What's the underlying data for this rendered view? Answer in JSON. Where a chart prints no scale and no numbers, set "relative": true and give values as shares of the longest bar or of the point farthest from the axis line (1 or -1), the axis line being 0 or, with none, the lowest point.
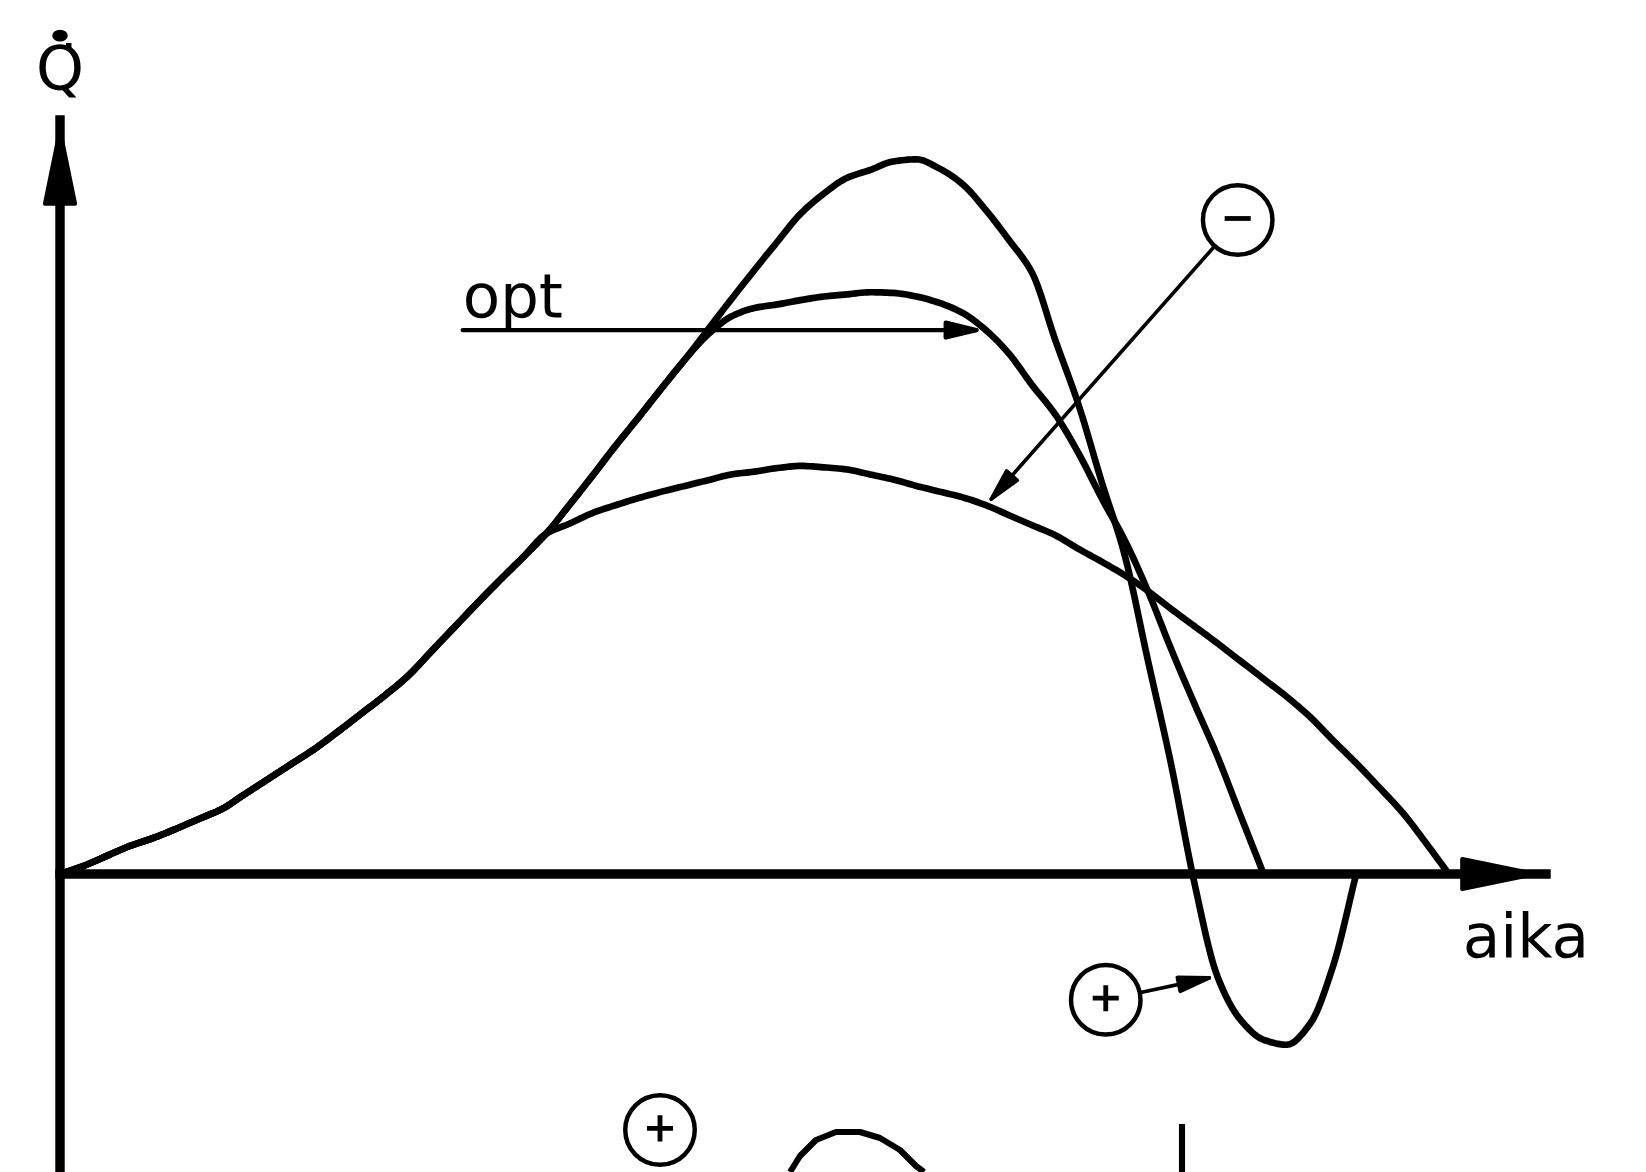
{
  "chart_data": {
    "type": "line",
    "xlabel": "aika",
    "ylabel": "Q̇",
    "relative": true,
    "categories": [
      null,
      null,
      null,
      null,
      null,
      null,
      null,
      null,
      null,
      null,
      null,
      null,
      null,
      null,
      null,
      null,
      null,
      null,
      null,
      null,
      null,
      null,
      null,
      null,
      null,
      null,
      null,
      null,
      null,
      null,
      null,
      null,
      null,
      null,
      null,
      null,
      null,
      null,
      null,
      null,
      null,
      null,
      null,
      null,
      null,
      null,
      null,
      null,
      null,
      null,
      null,
      null,
      null,
      null,
      null,
      null,
      null,
      null,
      null,
      null,
      null
    ],
    "series": [
      {
        "color": "#000000",
        "values": [
          0,
          0.011,
          0.025,
          0.039,
          0.05,
          0.063,
          0.077,
          0.091,
          0.112,
          0.133,
          0.154,
          0.175,
          0.199,
          0.224,
          0.249,
          0.276,
          0.31,
          0.344,
          0.378,
          0.411,
          0.443,
          0.476,
          0.516,
          0.557,
          0.599,
          0.639,
          0.68,
          0.72,
          0.762,
          0.804,
          0.845,
          0.885,
          0.924,
          0.952,
          0.974,
          0.985,
          0.997,
          1,
          0.987,
          0.965,
          0.929,
          0.887,
          0.841,
          0.747,
          0.657,
          0.549,
          0.446,
          0.299,
          0.154,
          -0.011,
          -0.143,
          -0.204,
          -0.232,
          -0.239,
          -0.21,
          -0.129,
          0,
          null,
          null,
          null,
          null
        ]
      },
      {
        "color": "#000000",
        "values": [
          0,
          0.011,
          0.025,
          0.039,
          0.05,
          0.063,
          0.077,
          0.091,
          0.112,
          0.133,
          0.154,
          0.175,
          0.199,
          0.224,
          0.249,
          0.276,
          0.31,
          0.344,
          0.378,
          0.411,
          0.443,
          0.476,
          0.516,
          0.557,
          0.599,
          0.639,
          0.68,
          0.72,
          0.755,
          0.78,
          0.792,
          0.797,
          0.803,
          0.808,
          0.811,
          0.814,
          0.813,
          0.808,
          0.799,
          0.785,
          0.761,
          0.728,
          0.684,
          0.643,
          0.589,
          0.526,
          0.467,
          0.396,
          0.315,
          0.239,
          0.165,
          0.082,
          0,
          null,
          null,
          null,
          null,
          null,
          null,
          null,
          null
        ]
      },
      {
        "color": "#000000",
        "values": [
          0,
          0.011,
          0.025,
          0.039,
          0.05,
          0.063,
          0.077,
          0.091,
          0.112,
          0.133,
          0.154,
          0.175,
          0.199,
          0.224,
          0.249,
          0.276,
          0.31,
          0.344,
          0.378,
          0.411,
          0.443,
          0.476,
          0.49,
          0.505,
          0.516,
          0.526,
          0.535,
          0.543,
          0.551,
          0.559,
          0.563,
          0.568,
          0.571,
          0.569,
          0.566,
          0.559,
          0.552,
          0.543,
          0.535,
          0.527,
          0.516,
          0.502,
          0.488,
          0.474,
          0.455,
          0.437,
          0.418,
          0.396,
          0.371,
          0.347,
          0.323,
          0.298,
          0.273,
          0.248,
          0.22,
          0.187,
          0.155,
          0.121,
          0.086,
          0.044,
          0
        ]
      }
    ],
    "annotations": [
      "opt",
      "−",
      "+",
      "+"
    ]
  }
}
